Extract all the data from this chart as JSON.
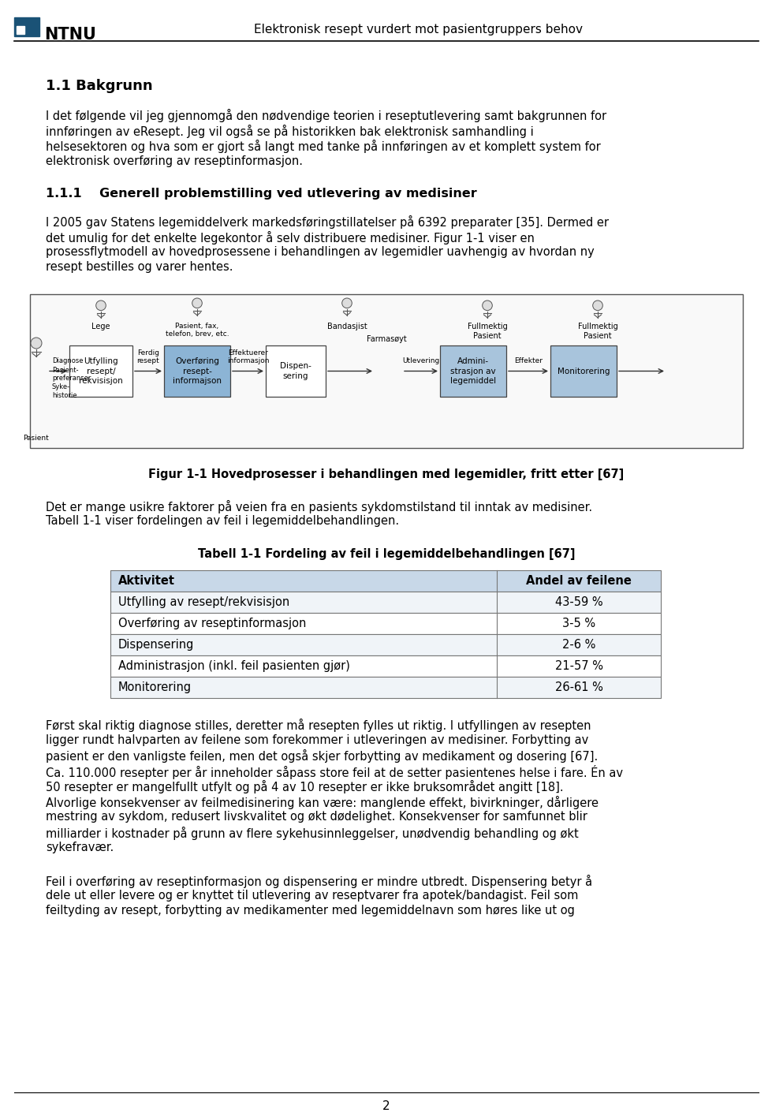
{
  "header_title": "Elektronisk resept vurdert mot pasientgruppers behov",
  "footer_page_num": "2",
  "section_title": "1.1 Bakgrunn",
  "para1_lines": [
    "I det følgende vil jeg gjennomgå den nødvendige teorien i reseptutlevering samt bakgrunnen for",
    "innføringen av eResept. Jeg vil også se på historikken bak elektronisk samhandling i",
    "helsesektoren og hva som er gjort så langt med tanke på innføringen av et komplett system for",
    "elektronisk overføring av reseptinformasjon."
  ],
  "subsection_title": "1.1.1    Generell problemstilling ved utlevering av medisiner",
  "para2_lines": [
    "I 2005 gav Statens legemiddelverk markedsføringstillatelser på 6392 preparater [35]. Dermed er",
    "det umulig for det enkelte legekontor å selv distribuere medisiner. Figur 1-1 viser en",
    "prosessflytmodell av hovedprosessene i behandlingen av legemidler uavhengig av hvordan ny",
    "resept bestilles og varer hentes."
  ],
  "fig_caption": "Figur 1-1 Hovedprosesser i behandlingen med legemidler, fritt etter [67]",
  "para3_lines": [
    "Det er mange usikre faktorer på veien fra en pasients sykdomstilstand til inntak av medisiner.",
    "Tabell 1-1 viser fordelingen av feil i legemiddelbehandlingen."
  ],
  "table_title": "Tabell 1-1 Fordeling av feil i legemiddelbehandlingen [67]",
  "table_col1": "Aktivitet",
  "table_col2": "Andel av feilene",
  "table_rows": [
    [
      "Utfylling av resept/rekvisisjon",
      "43-59 %"
    ],
    [
      "Overføring av reseptinformasjon",
      "3-5 %"
    ],
    [
      "Dispensering",
      "2-6 %"
    ],
    [
      "Administrasjon (inkl. feil pasienten gjør)",
      "21-57 %"
    ],
    [
      "Monitorering",
      "26-61 %"
    ]
  ],
  "para4_lines": [
    "Først skal riktig diagnose stilles, deretter må resepten fylles ut riktig. I utfyllingen av resepten",
    "ligger rundt halvparten av feilene som forekommer i utleveringen av medisiner. Forbytting av",
    "pasient er den vanligste feilen, men det også skjer forbytting av medikament og dosering [67].",
    "Ca. 110.000 resepter per år inneholder såpass store feil at de setter pasientenes helse i fare. Én av",
    "50 resepter er mangelfullt utfylt og på 4 av 10 resepter er ikke bruksområdet angitt [18].",
    "Alvorlige konsekvenser av feilmedisinering kan være: manglende effekt, bivirkninger, dårligere",
    "mestring av sykdom, redusert livskvalitet og økt dødelighet. Konsekvenser for samfunnet blir",
    "milliarder i kostnader på grunn av flere sykehusinnleggelser, unødvendig behandling og økt",
    "sykefravær."
  ],
  "para5_lines": [
    "Feil i overføring av reseptinformasjon og dispensering er mindre utbredt. Dispensering betyr å",
    "dele ut eller levere og er knyttet til utlevering av reseptvarer fra apotek/bandagist. Feil som",
    "feiltyding av resept, forbytting av medikamenter med legemiddelnavn som høres like ut og"
  ],
  "ntnu_box_color": "#1a5276",
  "bg_color": "#ffffff",
  "text_color": "#000000",
  "table_header_bg": "#c8d8e8",
  "table_row_bg0": "#ffffff",
  "table_row_bg1": "#f0f0f0"
}
